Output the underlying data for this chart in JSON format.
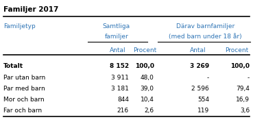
{
  "title": "Familjer 2017",
  "background_color": "#ffffff",
  "text_color": "#000000",
  "header_text_color": "#2E74B5",
  "title_color": "#000000",
  "line_color": "#000000",
  "rows": [
    [
      "Totalt",
      "8 152",
      "100,0",
      "3 269",
      "100,0"
    ],
    [
      "Par utan barn",
      "3 911",
      "48,0",
      "-",
      "-"
    ],
    [
      "Par med barn",
      "3 181",
      "39,0",
      "2 596",
      "79,4"
    ],
    [
      "Mor och barn",
      "844",
      "10,4",
      "554",
      "16,9"
    ],
    [
      "Far och barn",
      "216",
      "2,6",
      "119",
      "3,6"
    ]
  ],
  "bold_row": [
    true,
    false,
    false,
    false,
    false
  ],
  "title_fs": 7.5,
  "header_fs": 6.5,
  "data_fs": 6.5
}
